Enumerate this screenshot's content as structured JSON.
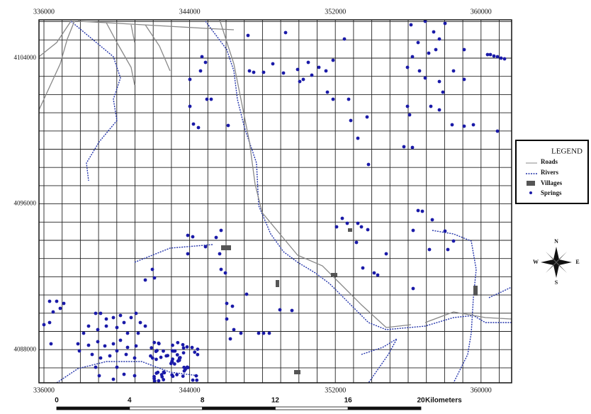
{
  "map": {
    "x_labels": [
      "336000",
      "344000",
      "352000",
      "360000"
    ],
    "y_labels": [
      "4104000",
      "4096000",
      "4088000"
    ],
    "legend": {
      "title": "LEGEND",
      "items": [
        "Roads",
        "Rivers",
        "Villages",
        "Springs"
      ]
    },
    "compass": {
      "north": "N",
      "south": "S",
      "east": "E",
      "west": "W"
    },
    "scale": {
      "labels": [
        "0",
        "4",
        "8",
        "12",
        "16",
        "20"
      ],
      "unit": "Kilometers"
    }
  }
}
